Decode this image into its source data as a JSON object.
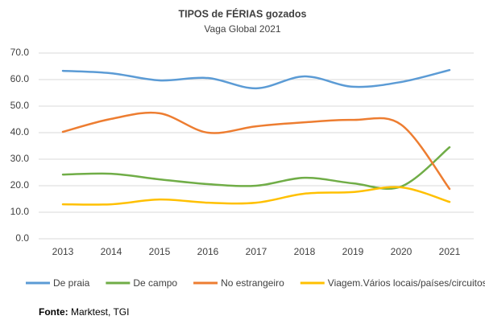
{
  "chart_data": {
    "type": "line",
    "title": "TIPOS de FÉRIAS gozados",
    "subtitle": "Vaga Global 2021",
    "categories": [
      "2013",
      "2014",
      "2015",
      "2016",
      "2017",
      "2018",
      "2019",
      "2020",
      "2021"
    ],
    "series": [
      {
        "name": "De praia",
        "color": "#5b9bd5",
        "values": [
          63.3,
          62.4,
          59.7,
          60.6,
          56.7,
          61.2,
          57.3,
          59.1,
          63.6
        ]
      },
      {
        "name": "De campo",
        "color": "#70ad47",
        "values": [
          24.2,
          24.5,
          22.4,
          20.6,
          20.0,
          23.0,
          20.9,
          19.7,
          34.5
        ]
      },
      {
        "name": "No estrangeiro",
        "color": "#ed7d31",
        "values": [
          40.3,
          45.2,
          47.3,
          40.0,
          42.4,
          43.9,
          44.8,
          43.0,
          18.8
        ]
      },
      {
        "name": "Viagem.Vários locais/países/circuitos",
        "color": "#ffc000",
        "values": [
          13.0,
          13.0,
          14.8,
          13.6,
          13.6,
          17.0,
          17.6,
          19.4,
          13.9
        ]
      }
    ],
    "ylim": [
      0,
      70
    ],
    "yticks": [
      {
        "value": 0,
        "label": "0.0"
      },
      {
        "value": 10,
        "label": "10.0"
      },
      {
        "value": 20,
        "label": "20.0"
      },
      {
        "value": 30,
        "label": "30.0"
      },
      {
        "value": 40,
        "label": "40.0"
      },
      {
        "value": 50,
        "label": "50.0"
      },
      {
        "value": 60,
        "label": "60.0"
      },
      {
        "value": 70,
        "label": "70.0"
      }
    ],
    "grid": true,
    "legend": "bottom",
    "source_label": "Fonte:",
    "source_text": " Marktest, TGI"
  }
}
